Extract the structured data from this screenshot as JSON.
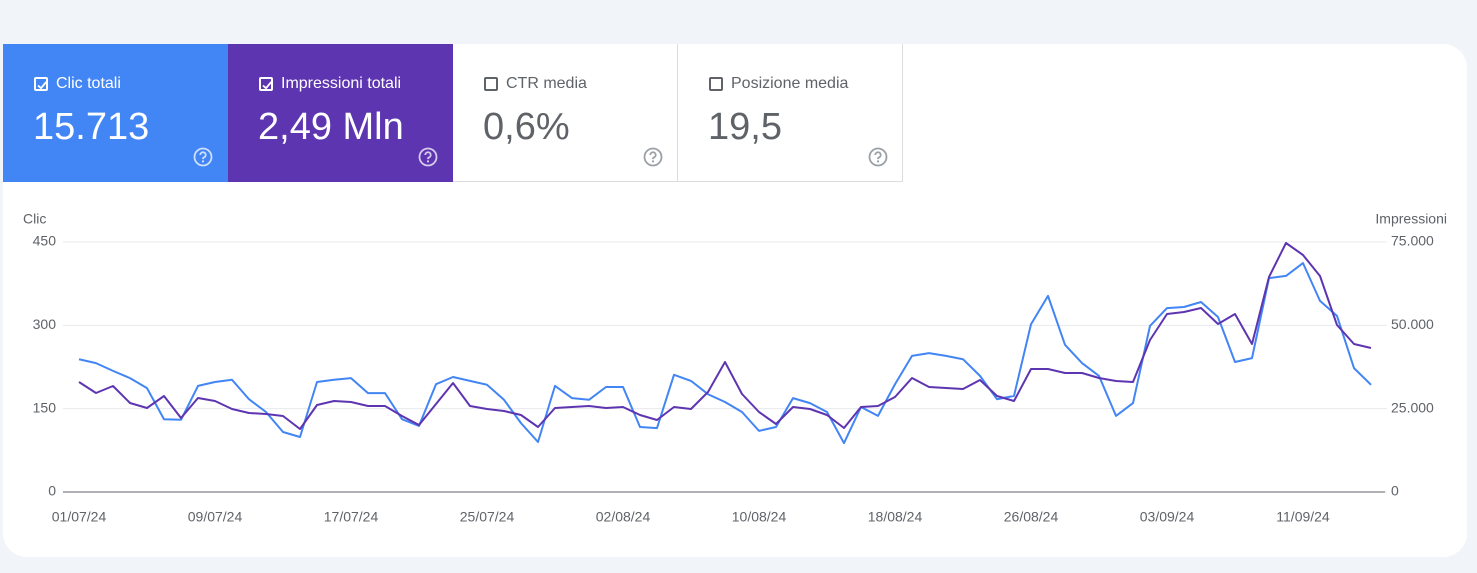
{
  "cards": [
    {
      "label": "Clic totali",
      "value": "15.713",
      "checked": true,
      "color": "#4285f4"
    },
    {
      "label": "Impressioni totali",
      "value": "2,49 Mln",
      "checked": true,
      "color": "#5e35b1"
    },
    {
      "label": "CTR media",
      "value": "0,6%",
      "checked": false
    },
    {
      "label": "Posizione media",
      "value": "19,5",
      "checked": false
    }
  ],
  "chart_data": {
    "type": "line",
    "ylabel": "Clic",
    "y2label": "Impressioni",
    "categories": [
      "01/07/24",
      null,
      null,
      null,
      null,
      null,
      null,
      null,
      "09/07/24",
      null,
      null,
      null,
      null,
      null,
      null,
      null,
      "17/07/24",
      null,
      null,
      null,
      null,
      null,
      null,
      null,
      "25/07/24",
      null,
      null,
      null,
      null,
      null,
      null,
      null,
      "02/08/24",
      null,
      null,
      null,
      null,
      null,
      null,
      null,
      "10/08/24",
      null,
      null,
      null,
      null,
      null,
      null,
      null,
      "18/08/24",
      null,
      null,
      null,
      null,
      null,
      null,
      null,
      "26/08/24",
      null,
      null,
      null,
      null,
      null,
      null,
      null,
      "03/09/24",
      null,
      null,
      null,
      null,
      null,
      null,
      null,
      "11/09/24",
      null,
      null,
      null,
      null
    ],
    "ylim": [
      0,
      450
    ],
    "yticks": [
      0,
      150,
      300,
      450
    ],
    "y2lim": [
      0,
      75000
    ],
    "y2ticks": [
      0,
      {
        "value": 25000,
        "label": "25.000"
      },
      {
        "value": 50000,
        "label": "50.000"
      },
      {
        "value": 75000,
        "label": "75.000"
      }
    ],
    "grid": true,
    "series": [
      {
        "name": "Clic",
        "color": "#4285f4",
        "values": [
          239,
          232,
          218,
          205,
          187,
          131,
          130,
          191,
          198,
          202,
          167,
          144,
          108,
          99,
          198,
          202,
          205,
          178,
          178,
          131,
          119,
          194,
          207,
          200,
          193,
          166,
          124,
          90,
          191,
          169,
          166,
          189,
          189,
          117,
          115,
          211,
          200,
          176,
          162,
          144,
          110,
          117,
          169,
          160,
          144,
          88,
          153,
          137,
          194,
          245,
          250,
          245,
          239,
          209,
          167,
          173,
          302,
          353,
          265,
          232,
          209,
          137,
          160,
          299,
          331,
          333,
          342,
          315,
          234,
          241,
          385,
          389,
          412,
          344,
          317,
          223,
          193
        ]
      },
      {
        "name": "Impressioni",
        "color": "#5e35b1",
        "axis": "y2",
        "values": [
          33000,
          29700,
          31800,
          26700,
          25200,
          28800,
          22200,
          28200,
          27300,
          24900,
          23700,
          23400,
          22800,
          18900,
          26100,
          27300,
          27000,
          25800,
          25800,
          22800,
          20100,
          26400,
          32700,
          25800,
          24900,
          24300,
          23100,
          19500,
          25200,
          25500,
          25800,
          25200,
          25500,
          23100,
          21600,
          25500,
          24900,
          30000,
          39000,
          29400,
          24000,
          20400,
          25500,
          24900,
          23100,
          19200,
          25500,
          25800,
          28500,
          34200,
          31500,
          31200,
          30900,
          33600,
          28800,
          27300,
          36900,
          36900,
          35700,
          35700,
          34200,
          33300,
          33000,
          45600,
          53400,
          54000,
          55200,
          50400,
          53400,
          44400,
          64500,
          74700,
          71100,
          64800,
          50100,
          44400,
          43200
        ]
      }
    ]
  }
}
